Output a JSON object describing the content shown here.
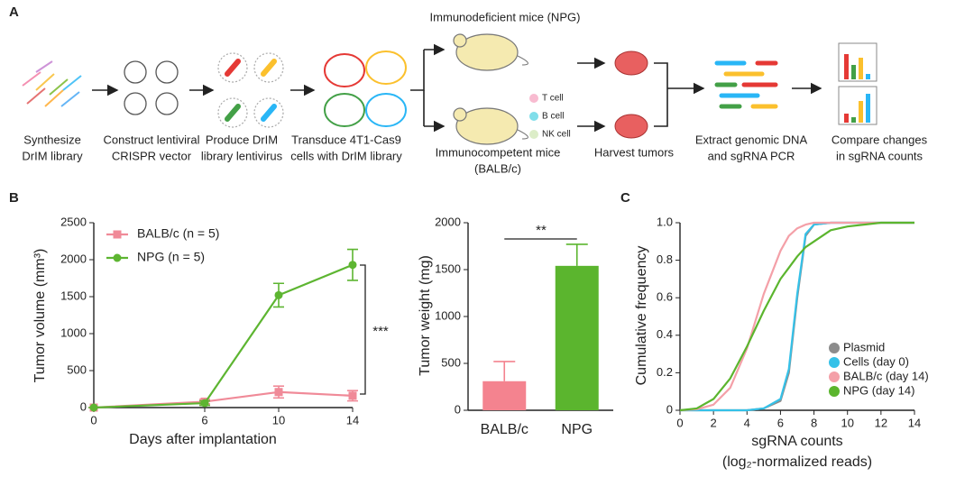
{
  "panel_labels": [
    "A",
    "B",
    "C"
  ],
  "workflow": {
    "steps": [
      {
        "lines": [
          "Synthesize",
          "DrIM library"
        ]
      },
      {
        "lines": [
          "Construct lentiviral",
          "CRISPR vector"
        ]
      },
      {
        "lines": [
          "Produce DrIM",
          "library lentivirus"
        ]
      },
      {
        "lines": [
          "Transduce 4T1-Cas9",
          "cells with DrIM library"
        ]
      },
      {
        "lines": [
          "Immunodeficient mice (NPG)"
        ]
      },
      {
        "lines": [
          "Immunocompetent mice",
          "(BALB/c)"
        ]
      },
      {
        "lines": [
          "Harvest tumors"
        ]
      },
      {
        "lines": [
          "Extract genomic DNA",
          "and sgRNA PCR"
        ]
      },
      {
        "lines": [
          "Compare changes",
          "in sgRNA counts"
        ]
      }
    ],
    "immune_cells": [
      "T cell",
      "B cell",
      "NK cell"
    ]
  },
  "chart_data": [
    {
      "type": "line",
      "x_label": "Days after implantation",
      "y_label": "Tumor volume (mm³)",
      "x": [
        0,
        6,
        10,
        14
      ],
      "xlim": [
        0,
        14
      ],
      "xticks": [
        0,
        6,
        10,
        14
      ],
      "ylim": [
        0,
        2500
      ],
      "yticks": [
        0,
        500,
        1000,
        1500,
        2000,
        2500
      ],
      "series": [
        {
          "name": "BALB/c (n = 5)",
          "color": "#f08a98",
          "marker": "square",
          "values": [
            0,
            80,
            210,
            160
          ],
          "errors": [
            0,
            30,
            80,
            70
          ]
        },
        {
          "name": "NPG (n = 5)",
          "color": "#5db531",
          "marker": "circle",
          "values": [
            0,
            60,
            1520,
            1930
          ],
          "errors": [
            0,
            30,
            160,
            210
          ]
        }
      ],
      "annotation": "***"
    },
    {
      "type": "bar",
      "y_label": "Tumor weight (mg)",
      "categories": [
        "BALB/c",
        "NPG"
      ],
      "values": [
        310,
        1540
      ],
      "errors": [
        210,
        230
      ],
      "colors": [
        "#f4838f",
        "#5bb52e"
      ],
      "ylim": [
        0,
        2000
      ],
      "yticks": [
        0,
        500,
        1000,
        1500,
        2000
      ],
      "annotation": "**"
    },
    {
      "type": "line",
      "y_label": "Cumulative frequency",
      "x_label": "sgRNA counts",
      "x_label_2": "(log₂-normalized reads)",
      "x": [
        0,
        1,
        2,
        3,
        4,
        5,
        6,
        6.5,
        7,
        7.5,
        8,
        9,
        10,
        12,
        14
      ],
      "xlim": [
        0,
        14
      ],
      "xticks": [
        0,
        2,
        4,
        6,
        8,
        10,
        12,
        14
      ],
      "ylim": [
        0,
        1
      ],
      "yticks": [
        0,
        0.2,
        0.4,
        0.6,
        0.8,
        {
          "value": 1,
          "label": "1.0"
        }
      ],
      "series": [
        {
          "name": "Plasmid",
          "color": "#8c8c8c",
          "values": [
            0,
            0,
            0,
            0,
            0,
            0.01,
            0.05,
            0.2,
            0.6,
            0.93,
            0.99,
            1,
            1,
            1,
            1
          ]
        },
        {
          "name": "Cells (day 0)",
          "color": "#35c1e8",
          "values": [
            0,
            0,
            0,
            0,
            0,
            0.01,
            0.06,
            0.22,
            0.62,
            0.94,
            0.99,
            1,
            1,
            1,
            1
          ]
        },
        {
          "name": "BALB/c (day 14)",
          "color": "#f4a0a8",
          "values": [
            0,
            0.005,
            0.03,
            0.12,
            0.33,
            0.62,
            0.85,
            0.93,
            0.97,
            0.99,
            1,
            1,
            1,
            1,
            1
          ]
        },
        {
          "name": "NPG (day 14)",
          "color": "#5bb52e",
          "values": [
            0,
            0.01,
            0.06,
            0.17,
            0.34,
            0.53,
            0.7,
            0.76,
            0.82,
            0.87,
            0.9,
            0.96,
            0.98,
            1,
            1
          ]
        }
      ]
    }
  ]
}
